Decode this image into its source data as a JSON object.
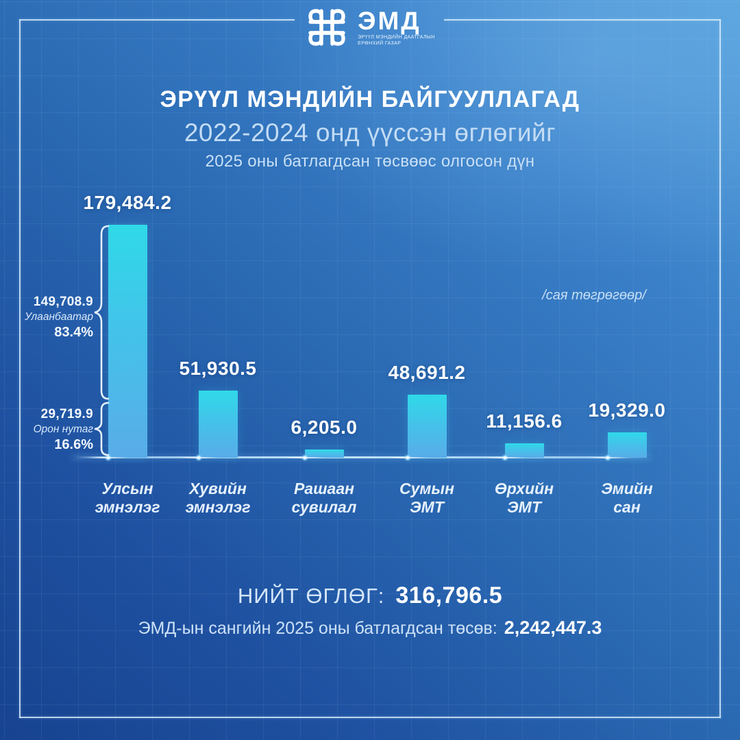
{
  "logo": {
    "name": "ЭМД",
    "org_line1": "ЭРҮҮЛ МЭНДИЙН ДААТГАЛЫН",
    "org_line2": "ЕРӨНХИЙ ГАЗАР"
  },
  "title": {
    "line1": "ЭРҮҮЛ МЭНДИЙН БАЙГУУЛЛАГАД",
    "line2": "2022-2024 онд үүссэн өглөгийг",
    "line3": "2025 оны батлагдсан төсвөөс олгосон дүн"
  },
  "unit_note": "/сая төгрөгөөр/",
  "chart_data": {
    "type": "bar",
    "title": "ЭРҮҮЛ МЭНДИЙН БАЙГУУЛЛАГАД 2022-2024 онд үүссэн өглөгийг 2025 оны батлагдсан төсвөөс олгосон дүн",
    "unit": "сая төгрөг",
    "categories": [
      "Улсын\nэмнэлэг",
      "Хувийн\nэмнэлэг",
      "Рашаан\nсувилал",
      "Сумын\nЭМТ",
      "Өрхийн\nЭМТ",
      "Эмийн\nсан"
    ],
    "values": [
      179484.2,
      51930.5,
      6205.0,
      48691.2,
      11156.6,
      19329.0
    ],
    "value_labels": [
      "179,484.2",
      "51,930.5",
      "6,205.0",
      "48,691.2",
      "11,156.6",
      "19,329.0"
    ],
    "ylim": [
      0,
      179484.2
    ],
    "grid": false,
    "legend": false,
    "bar_color_top": "#2fd9e8",
    "bar_color_bottom": "#59ace8",
    "breakdown": [
      {
        "value": "149,708.9",
        "region": "Улаанбаатар",
        "percent": "83.4%"
      },
      {
        "value": "29,719.9",
        "region": "Орон нутаг",
        "percent": "16.6%"
      }
    ]
  },
  "summary": {
    "total_label": "НИЙТ ӨГЛӨГ:",
    "total_value": "316,796.5",
    "budget_label": "ЭМД-ын сангийн 2025 оны батлагдсан төсөв:",
    "budget_value": "2,242,447.3"
  },
  "colors": {
    "background_light": "#55a0dc",
    "background_dark": "#174390",
    "bar_top": "#2fd9e8",
    "bar_bottom": "#59ace8",
    "frame": "#d8ecfb",
    "text_primary": "#ffffff",
    "text_secondary": "#c9e0f6"
  }
}
